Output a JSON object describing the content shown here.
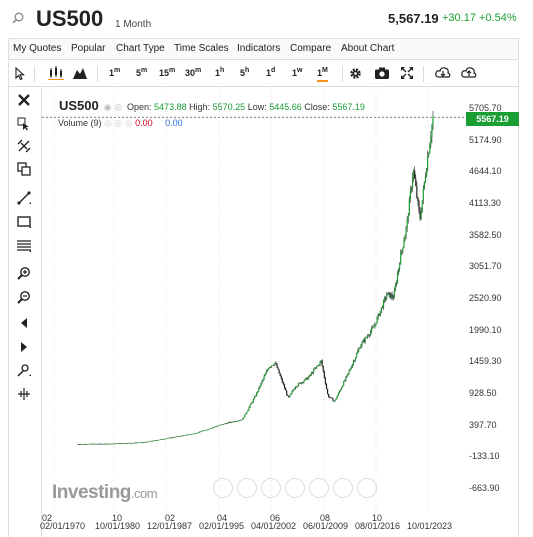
{
  "header": {
    "symbol": "US500",
    "period": "1 Month",
    "price": "5,567.19",
    "change": "+30.17 +0.54%"
  },
  "menu": [
    "My Quotes",
    "Popular",
    "Chart Type",
    "Time Scales",
    "Indicators",
    "Compare",
    "About Chart"
  ],
  "timescales": [
    {
      "n": "1",
      "u": "m"
    },
    {
      "n": "5",
      "u": "m"
    },
    {
      "n": "15",
      "u": "m"
    },
    {
      "n": "30",
      "u": "m"
    },
    {
      "n": "1",
      "u": "h"
    },
    {
      "n": "5",
      "u": "h"
    },
    {
      "n": "1",
      "u": "d"
    },
    {
      "n": "1",
      "u": "w"
    },
    {
      "n": "1",
      "u": "M"
    }
  ],
  "legend": {
    "symbol": "US500",
    "open_label": "Open:",
    "open": "5473.88",
    "high_label": "High:",
    "high": "5570.25",
    "low_label": "Low:",
    "low": "5445.66",
    "close_label": "Close:",
    "close": "5567.19",
    "volume_label": "Volume (9)",
    "vol1": "0.00",
    "vol2": "0.00"
  },
  "price_tag": "5567.19",
  "logo": {
    "main": "Investing",
    "suffix": ".com"
  },
  "colors": {
    "up": "#1a9e33",
    "down": "#d0021b",
    "accent": "#f7931a"
  },
  "chart_data": {
    "type": "candlestick",
    "title": "",
    "y_ticks": [
      "5705.70",
      "5174.90",
      "4644.10",
      "4113.30",
      "3582.50",
      "3051.70",
      "2520.90",
      "1990.10",
      "1459.30",
      "928.50",
      "397.70",
      "-133.10",
      "-663.90"
    ],
    "x_ticks_top": [
      "02",
      "10",
      "02",
      "04",
      "06",
      "08",
      "10"
    ],
    "x_ticks_bottom": [
      "02/01/1970",
      "10/01/1980",
      "12/01/1987",
      "02/01/1995",
      "04/01/2002",
      "06/01/2009",
      "08/01/2016",
      "10/01/2023"
    ],
    "ylim": [
      -663.9,
      5705.7
    ],
    "x": [
      1970,
      1975,
      1980,
      1985,
      1988,
      1992,
      1995,
      1997,
      1999,
      2000,
      2001,
      2002,
      2003,
      2005,
      2007,
      2008,
      2009,
      2011,
      2013,
      2015,
      2017,
      2018,
      2019,
      2020,
      2021,
      2022,
      2023,
      2024
    ],
    "close": [
      85,
      90,
      115,
      210,
      270,
      420,
      500,
      900,
      1380,
      1450,
      1150,
      850,
      1050,
      1200,
      1480,
      900,
      800,
      1250,
      1750,
      2050,
      2600,
      2550,
      3200,
      3750,
      4700,
      3850,
      4750,
      5567
    ]
  }
}
